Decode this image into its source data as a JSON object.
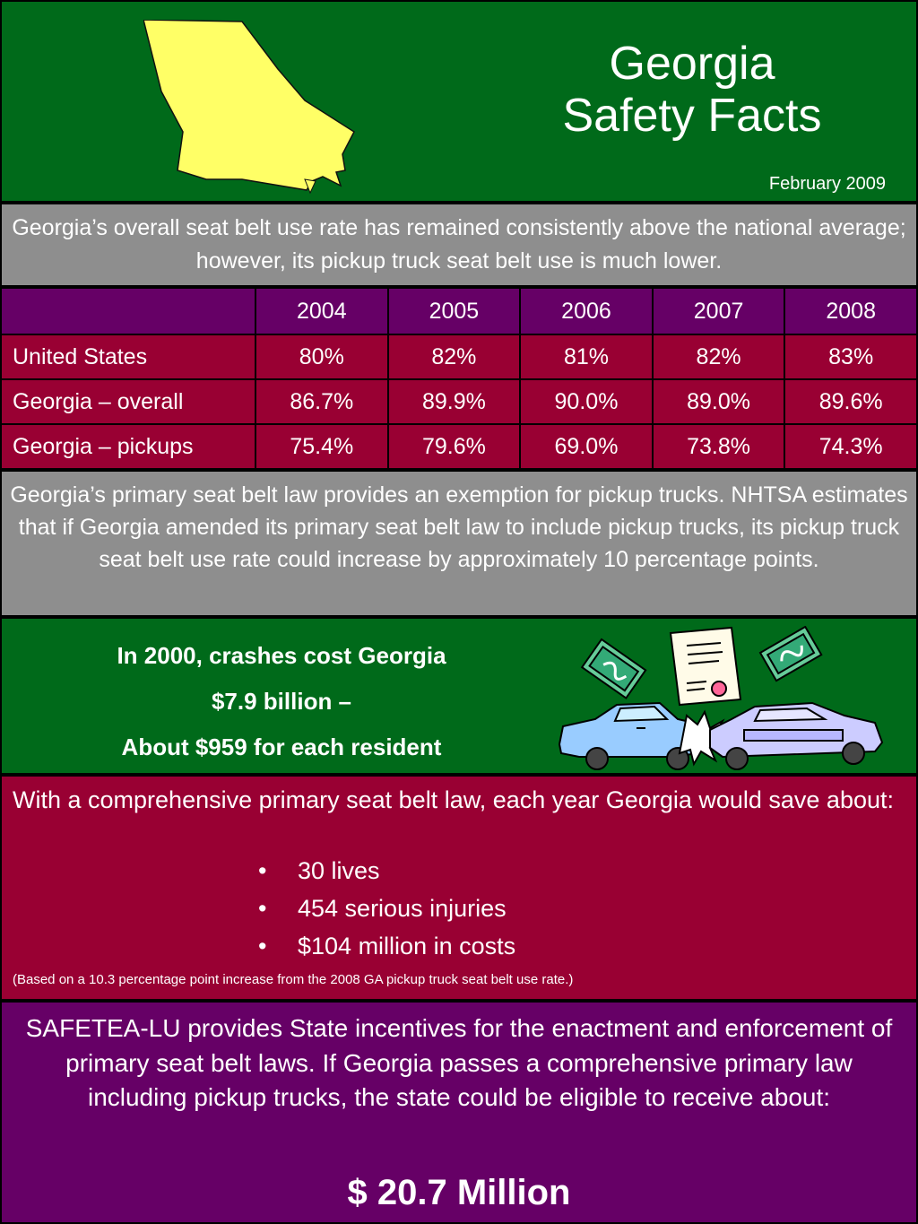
{
  "header": {
    "title_line1": "Georgia",
    "title_line2": "Safety Facts",
    "date": "February 2009",
    "map_color": "#ffff66"
  },
  "intro": {
    "text": "Georgia’s overall seat belt use rate has remained consistently above the national average; however, its pickup truck seat belt use is much lower."
  },
  "table": {
    "columns": [
      "2004",
      "2005",
      "2006",
      "2007",
      "2008"
    ],
    "rows": [
      {
        "label": "United States",
        "values": [
          "80%",
          "82%",
          "81%",
          "82%",
          "83%"
        ]
      },
      {
        "label": "Georgia – overall",
        "values": [
          "86.7%",
          "89.9%",
          "90.0%",
          "89.0%",
          "89.6%"
        ]
      },
      {
        "label": "Georgia – pickups",
        "values": [
          "75.4%",
          "79.6%",
          "69.0%",
          "73.8%",
          "74.3%"
        ]
      }
    ]
  },
  "exemption": {
    "text": "Georgia’s primary seat belt law provides an exemption for pickup trucks. NHTSA estimates that if Georgia amended its primary seat belt law to include pickup trucks, its pickup truck seat belt use rate could increase by approximately 10 percentage points."
  },
  "crash_cost": {
    "line1": "In 2000, crashes cost Georgia",
    "line2": "$7.9 billion –",
    "line3": "About $959 for each resident"
  },
  "savings": {
    "intro": "With a comprehensive primary seat belt law, each year Georgia would save about:",
    "items": [
      "30 lives",
      "454 serious injuries",
      "$104 million in costs"
    ],
    "note": "(Based on a 10.3 percentage point increase from the 2008 GA pickup truck seat belt use rate.)"
  },
  "safetea": {
    "text": "SAFETEA-LU provides State incentives for the enactment and enforcement of primary seat belt laws.  If Georgia passes a comprehensive primary law including pickup trucks, the state could be eligible to receive about:",
    "amount": "$ 20.7 Million"
  },
  "colors": {
    "green": "#006a1a",
    "gray": "#8e8e8e",
    "purple": "#660066",
    "crimson": "#990033"
  }
}
